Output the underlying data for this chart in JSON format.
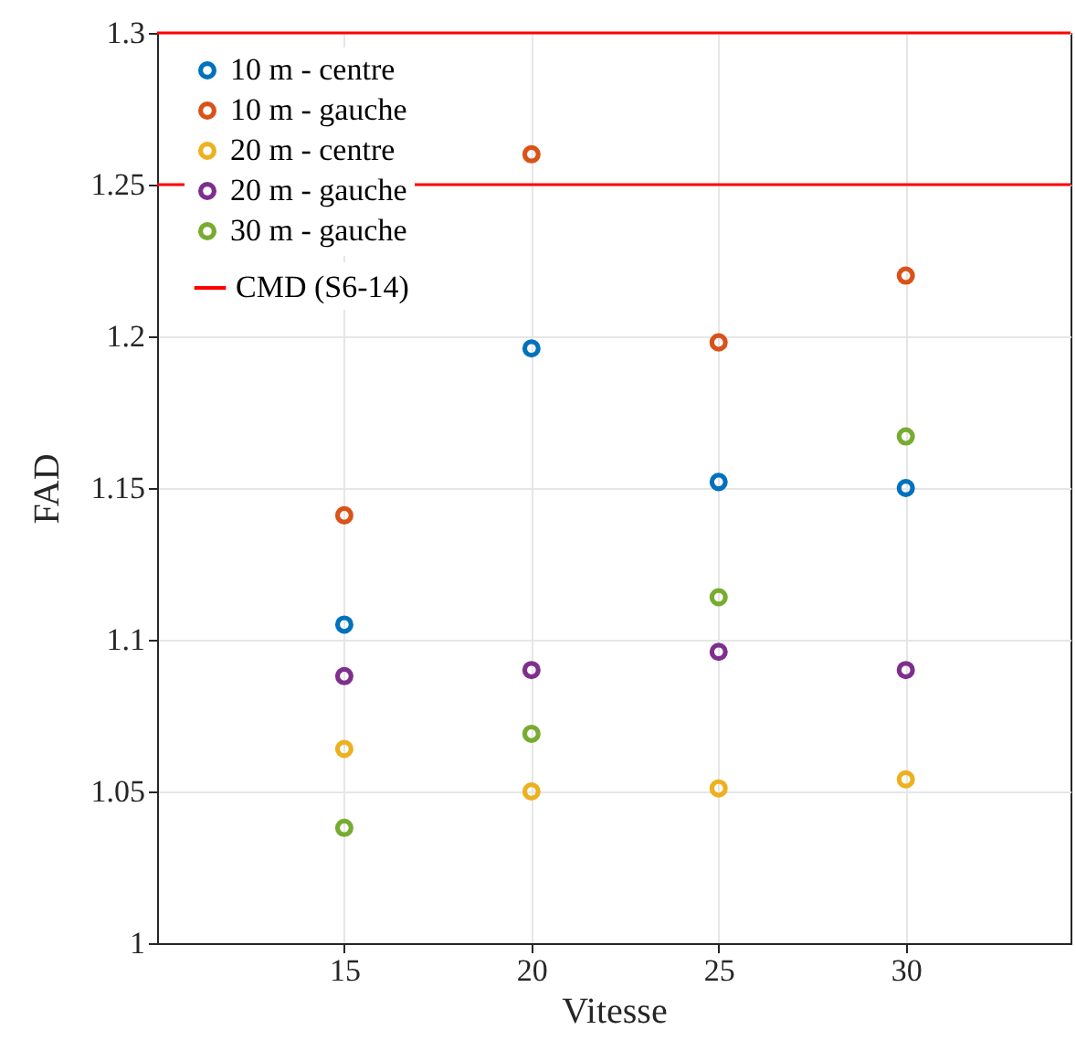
{
  "chart_data": {
    "type": "scatter",
    "xlabel": "Vitesse",
    "ylabel": "FAD",
    "x": [
      15,
      20,
      25,
      30
    ],
    "series": [
      {
        "name": "10 m - centre",
        "color": "#0072bd",
        "values": [
          1.105,
          1.196,
          1.152,
          1.15
        ]
      },
      {
        "name": "10 m - gauche",
        "color": "#d95319",
        "values": [
          1.141,
          1.26,
          1.198,
          1.22
        ]
      },
      {
        "name": "20 m - centre",
        "color": "#edb120",
        "values": [
          1.064,
          1.05,
          1.051,
          1.054
        ]
      },
      {
        "name": "20 m - gauche",
        "color": "#7e2f8e",
        "values": [
          1.088,
          1.09,
          1.096,
          1.09
        ]
      },
      {
        "name": "30 m - gauche",
        "color": "#77ac30",
        "values": [
          1.038,
          1.069,
          1.114,
          1.167
        ]
      }
    ],
    "ref_lines": [
      {
        "axis": "y",
        "value": 1.3,
        "label": "CMD (S6-14)",
        "color": "#ff0000"
      },
      {
        "axis": "y",
        "value": 1.25,
        "color": "#ff0000"
      }
    ],
    "xlim": [
      10,
      34.4
    ],
    "xticks": [
      15,
      20,
      25,
      30
    ],
    "ylim": [
      1,
      1.3
    ],
    "yticks": [
      1,
      1.05,
      1.1,
      1.15,
      1.2,
      1.25,
      1.3
    ],
    "grid": true,
    "legend": "top left",
    "marker": "circle"
  }
}
